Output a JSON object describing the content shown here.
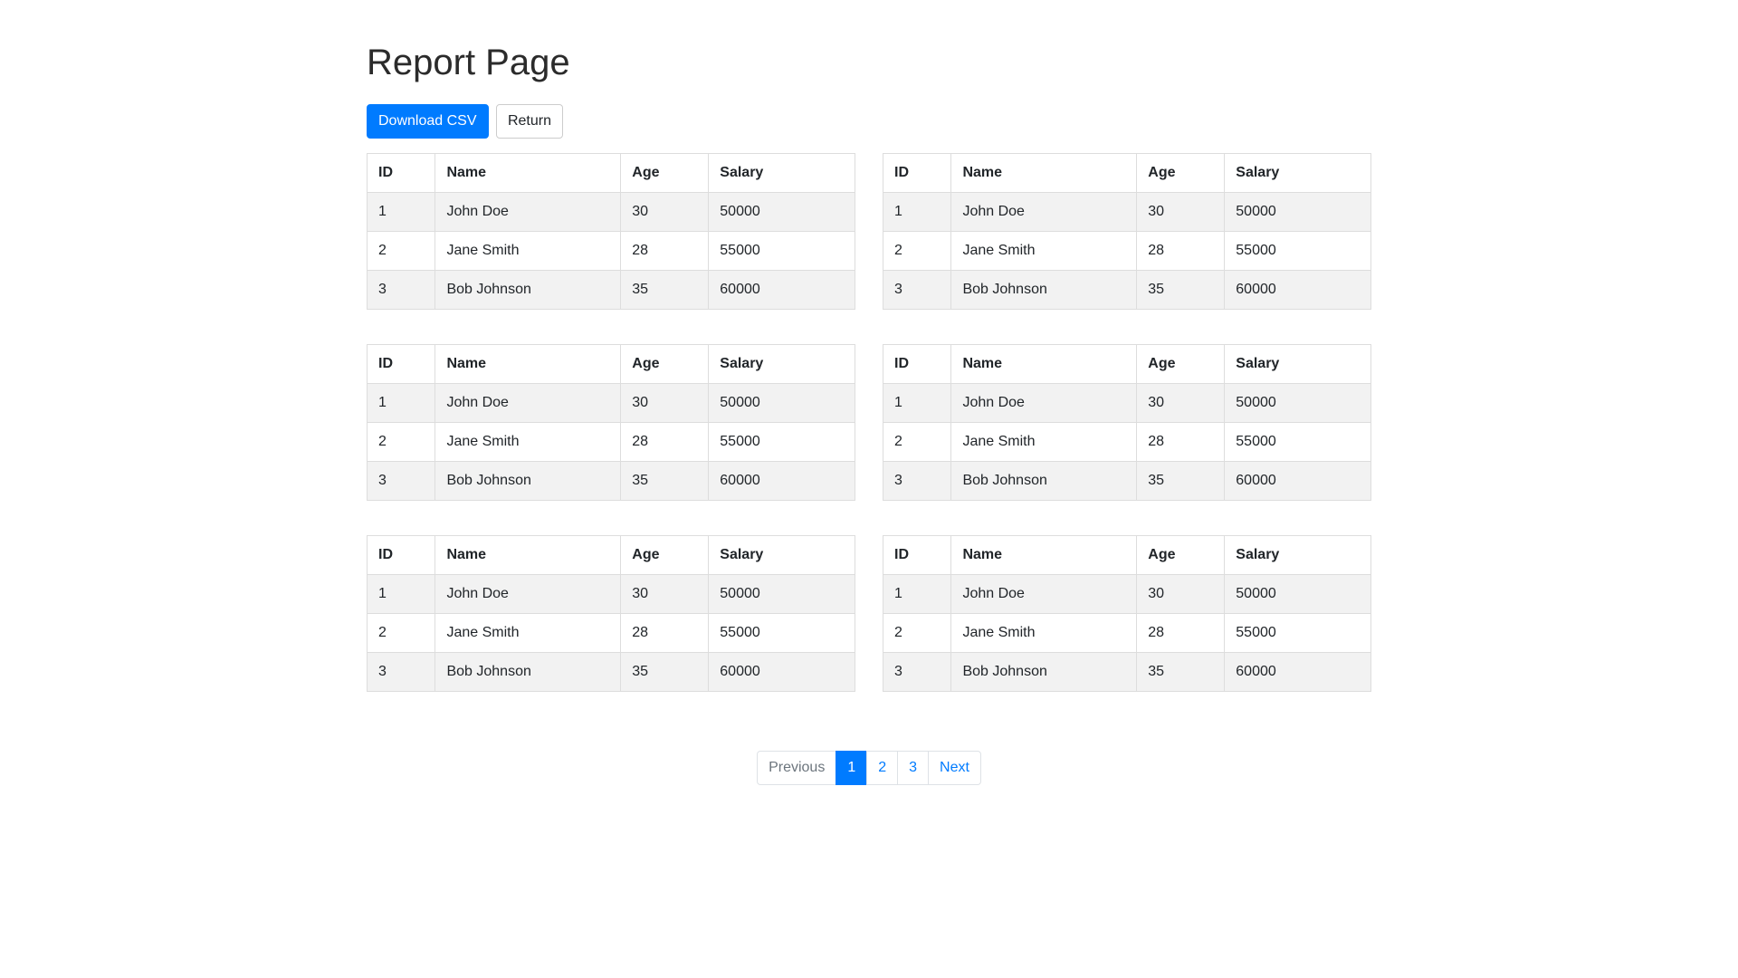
{
  "page": {
    "title": "Report Page"
  },
  "toolbar": {
    "download_csv_label": "Download CSV",
    "return_label": "Return"
  },
  "table": {
    "instances": 6,
    "headers": [
      "ID",
      "Name",
      "Age",
      "Salary"
    ],
    "rows": [
      [
        "1",
        "John Doe",
        "30",
        "50000"
      ],
      [
        "2",
        "Jane Smith",
        "28",
        "55000"
      ],
      [
        "3",
        "Bob Johnson",
        "35",
        "60000"
      ]
    ]
  },
  "pagination": {
    "previous_label": "Previous",
    "pages": [
      "1",
      "2",
      "3"
    ],
    "active_page": "1",
    "next_label": "Next"
  },
  "colors": {
    "primary": "#007bff",
    "link": "#007bff",
    "muted": "#6c757d",
    "border": "#dddddd",
    "pagination_border": "#dee2e6",
    "stripe": "#f2f2f2",
    "text": "#212529"
  }
}
